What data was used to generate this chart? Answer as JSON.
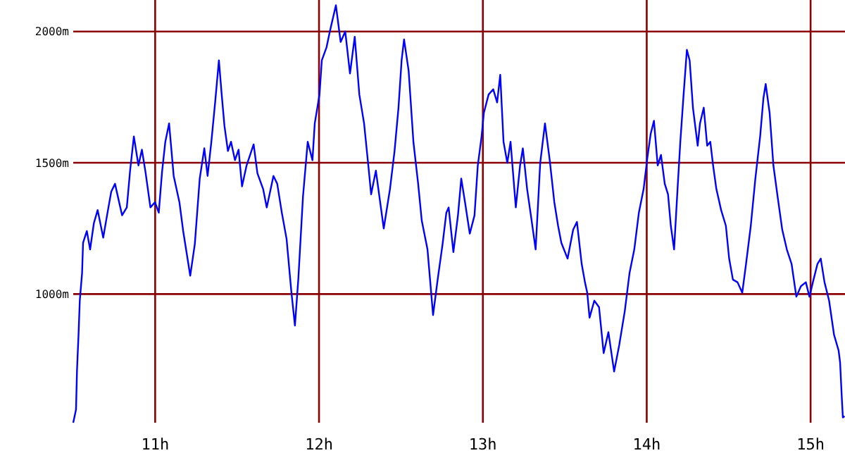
{
  "chart_data": {
    "type": "line",
    "xlim": [
      10.5,
      15.21
    ],
    "ylim": [
      510,
      2120
    ],
    "xticks": [
      {
        "value": 11,
        "label": "11h"
      },
      {
        "value": 12,
        "label": "12h"
      },
      {
        "value": 13,
        "label": "13h"
      },
      {
        "value": 14,
        "label": "14h"
      },
      {
        "value": 15,
        "label": "15h"
      }
    ],
    "yticks": [
      {
        "value": 1000,
        "label": "1000m"
      },
      {
        "value": 1500,
        "label": "1500m"
      },
      {
        "value": 2000,
        "label": "2000m"
      }
    ],
    "grid": true,
    "marker": "none",
    "line_style": "solid",
    "series": [
      {
        "color": "#0000ff",
        "x": [
          10.5,
          10.517,
          10.523,
          10.532,
          10.54,
          10.554,
          10.56,
          10.583,
          10.603,
          10.626,
          10.649,
          10.683,
          10.712,
          10.732,
          10.755,
          10.798,
          10.827,
          10.847,
          10.87,
          10.898,
          10.919,
          10.941,
          10.971,
          10.999,
          11.022,
          11.042,
          11.062,
          11.085,
          11.113,
          11.148,
          11.171,
          11.214,
          11.242,
          11.272,
          11.3,
          11.32,
          11.343,
          11.366,
          11.389,
          11.406,
          11.423,
          11.444,
          11.463,
          11.487,
          11.509,
          11.53,
          11.558,
          11.601,
          11.624,
          11.659,
          11.681,
          11.722,
          11.745,
          11.773,
          11.802,
          11.831,
          11.853,
          11.874,
          11.902,
          11.931,
          11.96,
          11.974,
          12.003,
          12.017,
          12.046,
          12.066,
          12.103,
          12.132,
          12.16,
          12.189,
          12.218,
          12.246,
          12.275,
          12.304,
          12.318,
          12.347,
          12.395,
          12.433,
          12.461,
          12.485,
          12.504,
          12.519,
          12.547,
          12.576,
          12.605,
          12.627,
          12.662,
          12.696,
          12.725,
          12.754,
          12.777,
          12.791,
          12.82,
          12.848,
          12.868,
          12.891,
          12.92,
          12.949,
          12.969,
          12.992,
          13.006,
          13.035,
          13.063,
          13.087,
          13.106,
          13.126,
          13.149,
          13.169,
          13.201,
          13.227,
          13.244,
          13.27,
          13.293,
          13.322,
          13.35,
          13.379,
          13.408,
          13.436,
          13.459,
          13.479,
          13.517,
          13.551,
          13.574,
          13.603,
          13.623,
          13.637,
          13.651,
          13.68,
          13.709,
          13.737,
          13.766,
          13.801,
          13.832,
          13.866,
          13.895,
          13.924,
          13.952,
          13.981,
          14.004,
          14.024,
          14.044,
          14.067,
          14.087,
          14.11,
          14.13,
          14.147,
          14.167,
          14.188,
          14.205,
          14.225,
          14.245,
          14.262,
          14.282,
          14.311,
          14.325,
          14.348,
          14.369,
          14.388,
          14.405,
          14.425,
          14.454,
          14.483,
          14.503,
          14.526,
          14.554,
          14.583,
          14.606,
          14.635,
          14.663,
          14.692,
          14.712,
          14.726,
          14.75,
          14.773,
          14.799,
          14.827,
          14.855,
          14.884,
          14.913,
          14.941,
          14.971,
          14.993,
          15.014,
          15.042,
          15.062,
          15.085,
          15.113,
          15.143,
          15.171,
          15.18,
          15.191,
          15.197,
          15.207
        ],
        "values": [
          510,
          560,
          710,
          840,
          975,
          1080,
          1195,
          1240,
          1170,
          1270,
          1320,
          1215,
          1320,
          1390,
          1420,
          1300,
          1330,
          1470,
          1600,
          1490,
          1550,
          1465,
          1330,
          1350,
          1310,
          1465,
          1580,
          1650,
          1450,
          1350,
          1240,
          1070,
          1190,
          1440,
          1555,
          1450,
          1580,
          1730,
          1890,
          1760,
          1640,
          1545,
          1580,
          1510,
          1550,
          1410,
          1490,
          1570,
          1460,
          1400,
          1330,
          1450,
          1420,
          1310,
          1210,
          1010,
          880,
          1060,
          1370,
          1580,
          1510,
          1650,
          1760,
          1890,
          1940,
          2000,
          2100,
          1960,
          2000,
          1840,
          1980,
          1760,
          1650,
          1470,
          1380,
          1470,
          1250,
          1400,
          1545,
          1710,
          1890,
          1970,
          1850,
          1580,
          1420,
          1280,
          1170,
          920,
          1060,
          1190,
          1310,
          1330,
          1160,
          1300,
          1440,
          1350,
          1230,
          1300,
          1490,
          1600,
          1690,
          1760,
          1780,
          1730,
          1835,
          1580,
          1500,
          1580,
          1330,
          1490,
          1555,
          1400,
          1300,
          1170,
          1500,
          1650,
          1510,
          1350,
          1260,
          1195,
          1135,
          1245,
          1275,
          1115,
          1045,
          1005,
          910,
          975,
          950,
          775,
          855,
          705,
          805,
          935,
          1080,
          1170,
          1310,
          1400,
          1520,
          1610,
          1660,
          1490,
          1530,
          1420,
          1380,
          1260,
          1170,
          1400,
          1580,
          1760,
          1930,
          1890,
          1710,
          1565,
          1650,
          1710,
          1565,
          1580,
          1490,
          1400,
          1320,
          1260,
          1135,
          1055,
          1045,
          1005,
          1115,
          1260,
          1440,
          1600,
          1745,
          1800,
          1690,
          1490,
          1370,
          1245,
          1170,
          1115,
          990,
          1030,
          1045,
          990,
          1045,
          1115,
          1135,
          1045,
          975,
          845,
          785,
          740,
          600,
          530,
          535
        ]
      }
    ]
  }
}
